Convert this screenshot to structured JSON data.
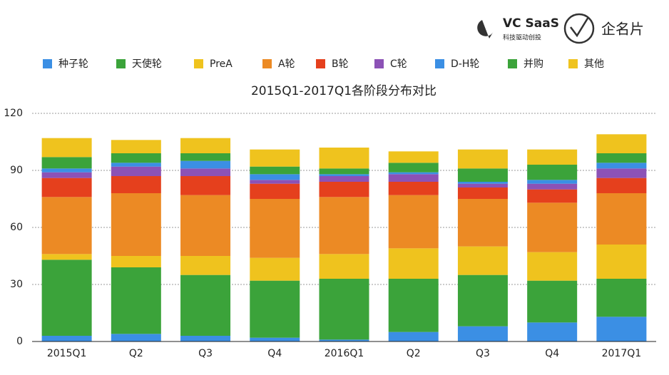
{
  "brand": {
    "name": "VC SaaS",
    "tagline": "科技驱动创投",
    "product": "企名片"
  },
  "chart_data": {
    "type": "stacked_bar",
    "title": "2015Q1-2017Q1各阶段分布对比",
    "categories": [
      "2015Q1",
      "Q2",
      "Q3",
      "Q4",
      "2016Q1",
      "Q2",
      "Q3",
      "Q4",
      "2017Q1"
    ],
    "series": [
      {
        "name": "种子轮",
        "color": "#3b8fe4",
        "values": [
          3,
          4,
          3,
          2,
          1,
          5,
          8,
          10,
          13
        ]
      },
      {
        "name": "天使轮",
        "color": "#3ba33a",
        "values": [
          40,
          35,
          32,
          30,
          32,
          28,
          27,
          22,
          20
        ]
      },
      {
        "name": "PreA",
        "color": "#efc31e",
        "values": [
          3,
          6,
          10,
          12,
          13,
          16,
          15,
          15,
          18
        ]
      },
      {
        "name": "A轮",
        "color": "#ec8a24",
        "values": [
          30,
          33,
          32,
          31,
          30,
          28,
          25,
          26,
          27
        ]
      },
      {
        "name": "B轮",
        "color": "#e5401d",
        "values": [
          10,
          9,
          10,
          8,
          8,
          7,
          6,
          7,
          8
        ]
      },
      {
        "name": "C轮",
        "color": "#8c52b6",
        "values": [
          3,
          5,
          4,
          2,
          3,
          4,
          2,
          3,
          5
        ]
      },
      {
        "name": "D-H轮",
        "color": "#3b8fe4",
        "values": [
          2,
          2,
          4,
          3,
          1,
          1,
          1,
          2,
          3
        ]
      },
      {
        "name": "并购",
        "color": "#3ba33a",
        "values": [
          6,
          5,
          4,
          4,
          3,
          5,
          7,
          8,
          5
        ]
      },
      {
        "name": "其他",
        "color": "#efc31e",
        "values": [
          10,
          7,
          8,
          9,
          11,
          6,
          10,
          8,
          10
        ]
      }
    ],
    "ylim": [
      0,
      120
    ],
    "yticks": [
      0,
      30,
      60,
      90,
      120
    ],
    "grid": true,
    "legend": "top"
  }
}
